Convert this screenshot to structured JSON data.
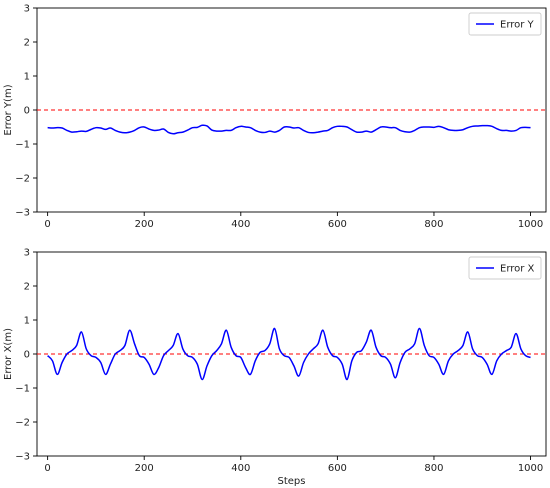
{
  "chart_data": [
    {
      "type": "line",
      "ylabel": "Error Y(m)",
      "xlabel": "",
      "xlim": [
        -22,
        1032
      ],
      "ylim": [
        -3,
        3
      ],
      "xticks": [
        0,
        200,
        400,
        600,
        800,
        1000
      ],
      "xtick_labels": [
        "0",
        "200",
        "400",
        "600",
        "800",
        "1000"
      ],
      "yticks": [
        3,
        2,
        1,
        0,
        -1,
        -2,
        -3
      ],
      "ytick_labels": [
        "3",
        "2",
        "1",
        "0",
        "−1",
        "−2",
        "−3"
      ],
      "grid": false,
      "legend_position": "top-right",
      "reference_line": {
        "y": 0,
        "color": "#ff0000",
        "style": "dashed"
      },
      "series": [
        {
          "name": "Error Y",
          "color": "#0000ff",
          "x": [
            0,
            10,
            20,
            30,
            40,
            50,
            60,
            70,
            80,
            90,
            100,
            110,
            120,
            130,
            140,
            150,
            160,
            170,
            180,
            190,
            200,
            210,
            220,
            230,
            240,
            250,
            260,
            270,
            280,
            290,
            300,
            310,
            320,
            330,
            340,
            350,
            360,
            370,
            380,
            390,
            400,
            410,
            420,
            430,
            440,
            450,
            460,
            470,
            480,
            490,
            500,
            510,
            520,
            530,
            540,
            550,
            560,
            570,
            580,
            590,
            600,
            610,
            620,
            630,
            640,
            650,
            660,
            670,
            680,
            690,
            700,
            710,
            720,
            730,
            740,
            750,
            760,
            770,
            780,
            790,
            800,
            810,
            820,
            830,
            840,
            850,
            860,
            870,
            880,
            890,
            900,
            910,
            920,
            930,
            940,
            950,
            960,
            970,
            980,
            990,
            1000
          ],
          "values": [
            -0.52,
            -0.53,
            -0.52,
            -0.53,
            -0.6,
            -0.65,
            -0.64,
            -0.62,
            -0.63,
            -0.57,
            -0.52,
            -0.53,
            -0.57,
            -0.53,
            -0.6,
            -0.65,
            -0.67,
            -0.65,
            -0.6,
            -0.52,
            -0.5,
            -0.56,
            -0.6,
            -0.59,
            -0.56,
            -0.66,
            -0.7,
            -0.67,
            -0.65,
            -0.59,
            -0.52,
            -0.51,
            -0.45,
            -0.47,
            -0.59,
            -0.62,
            -0.62,
            -0.6,
            -0.6,
            -0.52,
            -0.48,
            -0.5,
            -0.52,
            -0.6,
            -0.65,
            -0.66,
            -0.62,
            -0.65,
            -0.6,
            -0.5,
            -0.5,
            -0.53,
            -0.52,
            -0.6,
            -0.66,
            -0.67,
            -0.65,
            -0.62,
            -0.6,
            -0.52,
            -0.48,
            -0.48,
            -0.5,
            -0.58,
            -0.65,
            -0.65,
            -0.62,
            -0.65,
            -0.58,
            -0.5,
            -0.5,
            -0.52,
            -0.52,
            -0.6,
            -0.64,
            -0.65,
            -0.6,
            -0.52,
            -0.5,
            -0.5,
            -0.51,
            -0.48,
            -0.52,
            -0.58,
            -0.6,
            -0.6,
            -0.58,
            -0.52,
            -0.48,
            -0.47,
            -0.46,
            -0.46,
            -0.48,
            -0.55,
            -0.6,
            -0.6,
            -0.62,
            -0.6,
            -0.52,
            -0.51,
            -0.52
          ]
        }
      ]
    },
    {
      "type": "line",
      "ylabel": "Error X(m)",
      "xlabel": "Steps",
      "xlim": [
        -22,
        1032
      ],
      "ylim": [
        -3,
        3
      ],
      "xticks": [
        0,
        200,
        400,
        600,
        800,
        1000
      ],
      "xtick_labels": [
        "0",
        "200",
        "400",
        "600",
        "800",
        "1000"
      ],
      "yticks": [
        3,
        2,
        1,
        0,
        -1,
        -2,
        -3
      ],
      "ytick_labels": [
        "3",
        "2",
        "1",
        "0",
        "−1",
        "−2",
        "−3"
      ],
      "grid": false,
      "legend_position": "top-right",
      "reference_line": {
        "y": 0,
        "color": "#ff0000",
        "style": "dashed"
      },
      "series": [
        {
          "name": "Error X",
          "color": "#0000ff",
          "x": [
            0,
            10,
            20,
            30,
            40,
            50,
            60,
            70,
            80,
            90,
            100,
            110,
            120,
            130,
            140,
            150,
            160,
            170,
            180,
            190,
            200,
            210,
            220,
            230,
            240,
            250,
            260,
            270,
            280,
            290,
            300,
            310,
            320,
            330,
            340,
            350,
            360,
            370,
            380,
            390,
            400,
            410,
            420,
            430,
            440,
            450,
            460,
            470,
            480,
            490,
            500,
            510,
            520,
            530,
            540,
            550,
            560,
            570,
            580,
            590,
            600,
            610,
            620,
            630,
            640,
            650,
            660,
            670,
            680,
            690,
            700,
            710,
            720,
            730,
            740,
            750,
            760,
            770,
            780,
            790,
            800,
            810,
            820,
            830,
            840,
            850,
            860,
            870,
            880,
            890,
            900,
            910,
            920,
            930,
            940,
            950,
            960,
            970,
            980,
            990,
            1000
          ],
          "values": [
            -0.05,
            -0.2,
            -0.6,
            -0.25,
            0,
            0.1,
            0.25,
            0.65,
            0.15,
            -0.05,
            -0.1,
            -0.25,
            -0.6,
            -0.3,
            0,
            0.1,
            0.25,
            0.7,
            0.3,
            -0.05,
            -0.1,
            -0.3,
            -0.6,
            -0.4,
            -0.05,
            0.1,
            0.25,
            0.6,
            0.15,
            -0.05,
            -0.1,
            -0.3,
            -0.75,
            -0.35,
            -0.05,
            0.1,
            0.3,
            0.7,
            0.2,
            -0.05,
            -0.1,
            -0.4,
            -0.6,
            -0.2,
            0.05,
            0.1,
            0.3,
            0.75,
            0.15,
            -0.05,
            -0.1,
            -0.35,
            -0.65,
            -0.25,
            0,
            0.15,
            0.3,
            0.7,
            0.2,
            -0.05,
            -0.1,
            -0.3,
            -0.75,
            -0.2,
            0.05,
            0.1,
            0.35,
            0.7,
            0.2,
            -0.05,
            -0.1,
            -0.3,
            -0.7,
            -0.25,
            0.05,
            0.15,
            0.3,
            0.75,
            0.25,
            -0.05,
            -0.1,
            -0.3,
            -0.6,
            -0.2,
            0,
            0.1,
            0.25,
            0.65,
            0.15,
            -0.05,
            -0.1,
            -0.3,
            -0.6,
            -0.2,
            0,
            0.1,
            0.2,
            0.6,
            0.15,
            -0.05,
            -0.1
          ]
        }
      ]
    }
  ]
}
